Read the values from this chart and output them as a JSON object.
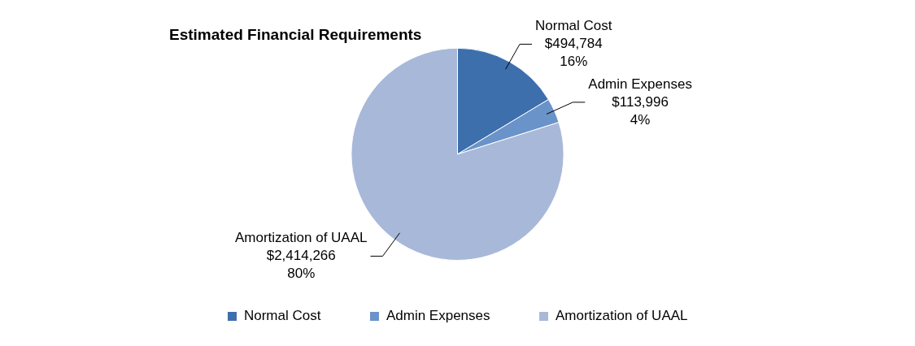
{
  "chart_data": {
    "type": "pie",
    "title": "Estimated Financial Requirements",
    "categories": [
      "Normal Cost",
      "Admin Expenses",
      "Amortization of UAAL"
    ],
    "values": [
      494784,
      113996,
      2414266
    ],
    "colors": [
      "#3d6fad",
      "#6a93c9",
      "#a8b8d8"
    ],
    "value_labels": [
      "$494,784\n16%",
      "$113,996\n4%",
      "$2,414,266\n80%"
    ],
    "legend": "bottom"
  }
}
